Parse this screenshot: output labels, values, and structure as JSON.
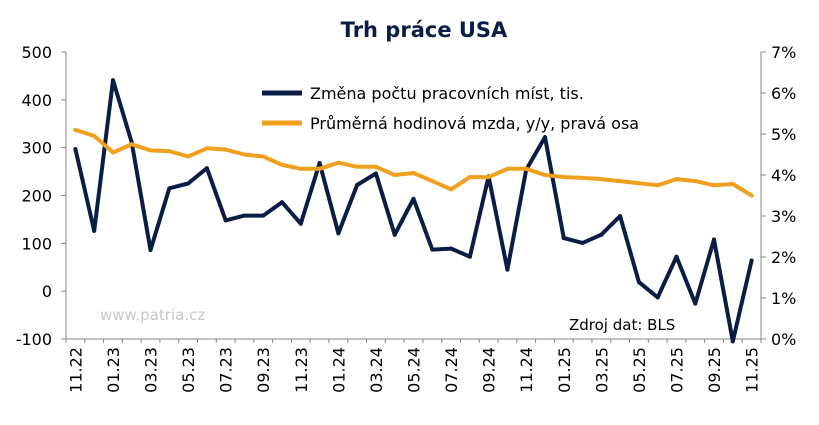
{
  "chart_data": {
    "type": "line",
    "title": "Trh práce USA",
    "x_ticks": [
      "11.22",
      "01.23",
      "03.23",
      "05.23",
      "07.23",
      "09.23",
      "11.23",
      "01.24",
      "03.24",
      "05.24",
      "07.24",
      "09.24",
      "11.24",
      "01.25",
      "03.25",
      "05.25",
      "07.25",
      "09.25",
      "11.25"
    ],
    "x": [
      "11.22",
      "12.22",
      "01.23",
      "02.23",
      "03.23",
      "04.23",
      "05.23",
      "06.23",
      "07.23",
      "08.23",
      "09.23",
      "10.23",
      "11.23",
      "12.23",
      "01.24",
      "02.24",
      "03.24",
      "04.24",
      "05.24",
      "06.24",
      "07.24",
      "08.24",
      "09.24",
      "10.24",
      "11.24",
      "12.24",
      "01.25",
      "02.25",
      "03.25",
      "04.25",
      "05.25",
      "06.25",
      "07.25",
      "08.25",
      "09.25",
      "10.25",
      "11.25"
    ],
    "y_left": {
      "lim": [
        -100,
        500
      ],
      "ticks": [
        "-100",
        "0",
        "100",
        "200",
        "300",
        "400",
        "500"
      ]
    },
    "y_right": {
      "lim": [
        0,
        7
      ],
      "ticks": [
        "0%",
        "1%",
        "2%",
        "3%",
        "4%",
        "5%",
        "6%",
        "7%"
      ]
    },
    "series": [
      {
        "name": "Změna počtu pracovních míst, tis.",
        "axis": "left",
        "color": "#0b1d44",
        "values": [
          297,
          126,
          441,
          311,
          86,
          215,
          225,
          257,
          148,
          158,
          158,
          186,
          141,
          268,
          121,
          222,
          246,
          118,
          193,
          87,
          89,
          72,
          240,
          45,
          254,
          322,
          111,
          101,
          118,
          157,
          19,
          -13,
          72,
          -26,
          108,
          -105,
          64
        ]
      },
      {
        "name": "Průměrná hodinová mzda, y/y, pravá osa",
        "axis": "right",
        "color": "#f0a01e",
        "values": [
          5.1,
          4.95,
          4.55,
          4.75,
          4.6,
          4.58,
          4.45,
          4.65,
          4.62,
          4.5,
          4.45,
          4.25,
          4.15,
          4.15,
          4.3,
          4.2,
          4.2,
          4.0,
          4.05,
          3.85,
          3.65,
          3.95,
          3.95,
          4.15,
          4.15,
          4.0,
          3.95,
          3.93,
          3.9,
          3.85,
          3.8,
          3.75,
          3.9,
          3.85,
          3.75,
          3.78,
          3.5
        ]
      }
    ],
    "legend_position": "top-center",
    "grid": false,
    "source_note": "Zdroj dat: BLS",
    "watermark": "www.patria.cz"
  }
}
